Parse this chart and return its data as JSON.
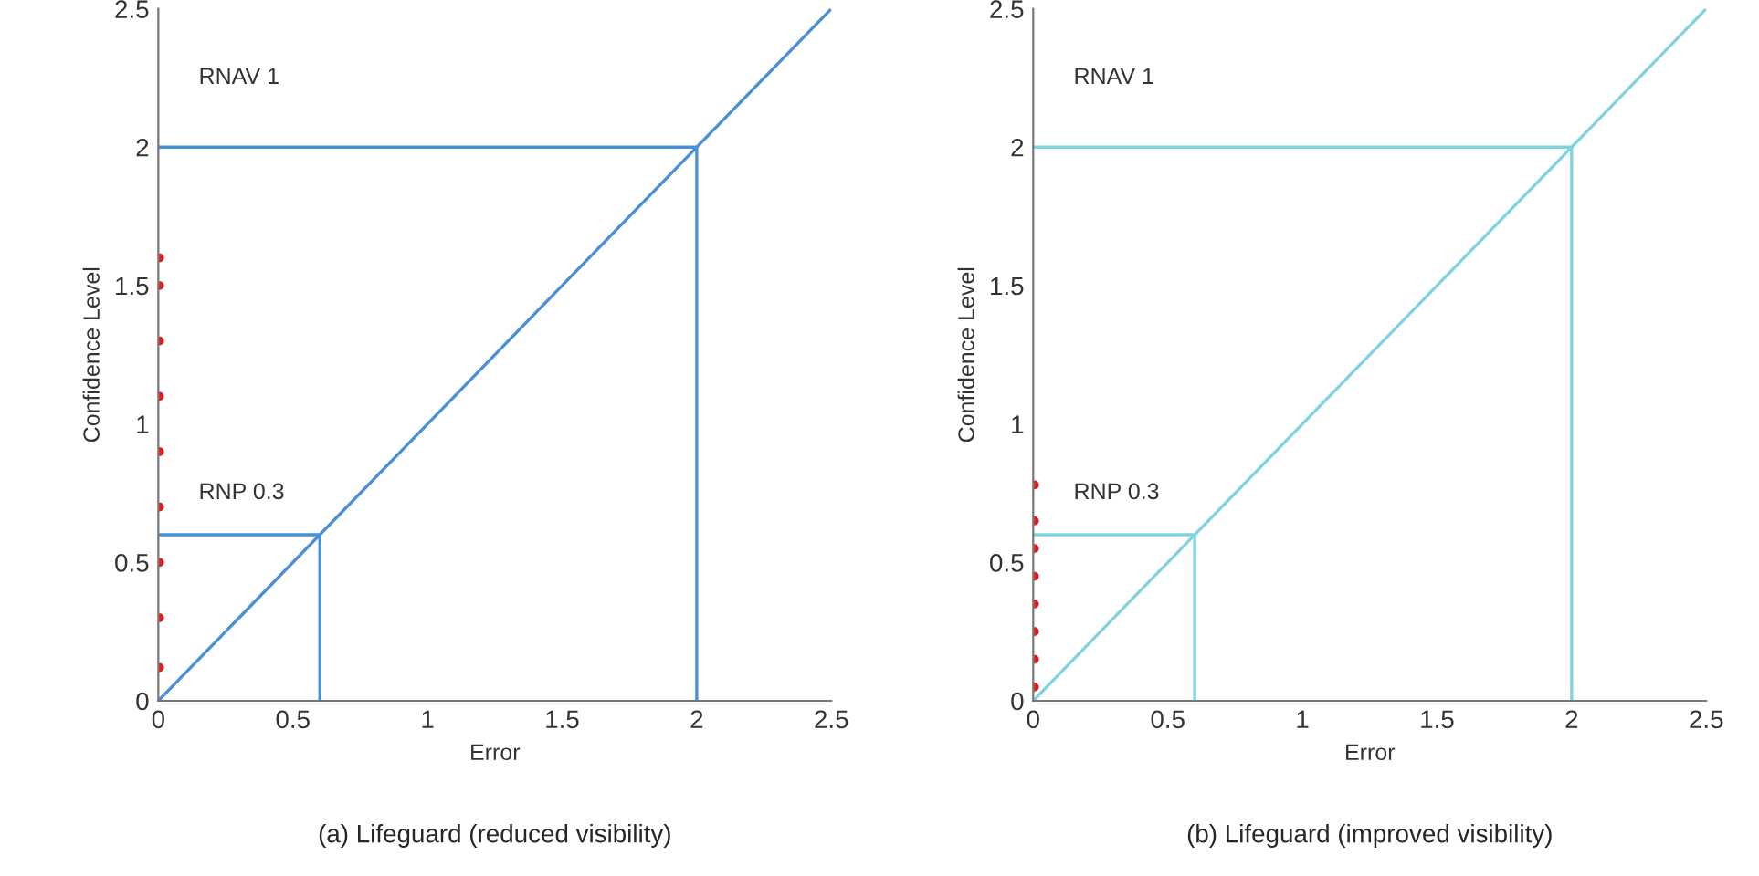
{
  "chart_data": [
    {
      "type": "line",
      "title": "(a) Lifeguard (reduced visibility)",
      "xlabel": "Error",
      "ylabel": "Confidence Level",
      "xlim": [
        0,
        2.5
      ],
      "ylim": [
        0,
        2.5
      ],
      "xticks": [
        0,
        0.5,
        1,
        1.5,
        2,
        2.5
      ],
      "yticks": [
        0,
        0.5,
        1,
        1.5,
        2,
        2.5
      ],
      "grid": false,
      "legend": false,
      "line_style": "solid",
      "series": [
        {
          "color": "#4a90d9",
          "x": [
            0,
            2.5
          ],
          "values": [
            0,
            2.5
          ]
        },
        {
          "color": "#4a90d9",
          "x": [
            0,
            2,
            2
          ],
          "values": [
            2,
            2,
            0
          ]
        },
        {
          "color": "#4a90d9",
          "x": [
            0,
            0.6,
            0.6
          ],
          "values": [
            0.6,
            0.6,
            0
          ]
        },
        {
          "type": "scatter",
          "color": "#e02020",
          "marker": "circle",
          "x": [
            0.005,
            0.005,
            0.005,
            0.005,
            0.005,
            0.005,
            0.005,
            0.005,
            0.005
          ],
          "values": [
            0.12,
            0.3,
            0.5,
            0.7,
            0.9,
            1.1,
            1.3,
            1.5,
            1.6
          ]
        }
      ],
      "annotations": [
        "RNAV 1",
        "RNP 0.3"
      ]
    },
    {
      "type": "line",
      "title": "(b) Lifeguard (improved visibility)",
      "xlabel": "Error",
      "ylabel": "Confidence Level",
      "xlim": [
        0,
        2.5
      ],
      "ylim": [
        0,
        2.5
      ],
      "xticks": [
        0,
        0.5,
        1,
        1.5,
        2,
        2.5
      ],
      "yticks": [
        0,
        0.5,
        1,
        1.5,
        2,
        2.5
      ],
      "grid": false,
      "legend": false,
      "line_style": "solid",
      "series": [
        {
          "color": "#7fd3e0",
          "x": [
            0,
            2.5
          ],
          "values": [
            0,
            2.5
          ]
        },
        {
          "color": "#7fd3e0",
          "x": [
            0,
            2,
            2
          ],
          "values": [
            2,
            2,
            0
          ]
        },
        {
          "color": "#7fd3e0",
          "x": [
            0,
            0.6,
            0.6
          ],
          "values": [
            0.6,
            0.6,
            0
          ]
        },
        {
          "type": "scatter",
          "color": "#e02020",
          "marker": "circle",
          "x": [
            0.005,
            0.005,
            0.005,
            0.005,
            0.005,
            0.005,
            0.005,
            0.005
          ],
          "values": [
            0.05,
            0.15,
            0.25,
            0.35,
            0.45,
            0.55,
            0.65,
            0.78
          ]
        }
      ],
      "annotations": [
        "RNAV 1",
        "RNP 0.3"
      ]
    }
  ]
}
